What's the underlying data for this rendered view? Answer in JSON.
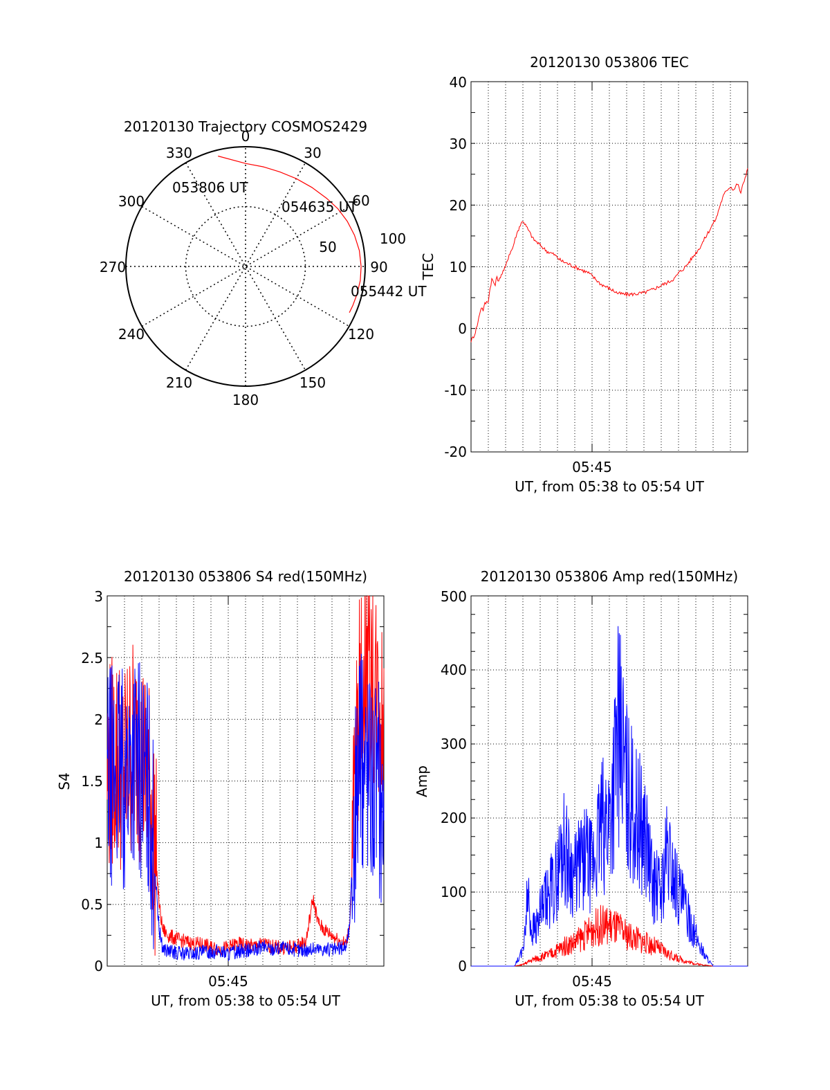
{
  "chart_data": [
    {
      "type": "polar",
      "title": "20120130 Trajectory COSMOS2429",
      "angle_labels": [
        "0",
        "30",
        "60",
        "90",
        "120",
        "150",
        "180",
        "210",
        "240",
        "270",
        "300",
        "330"
      ],
      "radial_labels": [
        "50",
        "100"
      ],
      "start_label": "053806 UT",
      "mid_label": "054635 UT",
      "end_label": "055442 UT",
      "line_color": "#ff0000",
      "track": {
        "azimuth": [
          -14,
          0,
          10,
          20,
          30,
          40,
          50,
          58,
          66,
          74,
          82,
          90,
          97,
          104,
          110,
          114
        ],
        "radius": [
          95,
          86,
          84.5,
          84,
          84.7,
          86.2,
          88.5,
          91,
          93,
          94.7,
          96,
          96.6,
          96.6,
          96,
          95.4,
          95
        ]
      }
    },
    {
      "type": "line",
      "title": "20120130 053806 TEC",
      "xlabel": "UT, from 05:38 to 05:54 UT",
      "ylabel": "TEC",
      "x_tick_label": "05:45",
      "xlim": [
        0,
        16
      ],
      "ylim": [
        -20,
        40
      ],
      "y_ticks": [
        "-20",
        "-10",
        "0",
        "10",
        "20",
        "30",
        "40"
      ],
      "grid": true,
      "series": [
        {
          "color": "#ff0000",
          "x": [
            0,
            0.1,
            0.2,
            0.3,
            0.4,
            0.5,
            0.6,
            0.7,
            0.8,
            1.0,
            1.1,
            1.2,
            1.4,
            1.5,
            1.6,
            1.7,
            1.8,
            2.0,
            2.2,
            2.4,
            2.6,
            2.8,
            3.0,
            3.3,
            3.6,
            4.0,
            4.4,
            4.8,
            5.2,
            5.6,
            6.0,
            6.4,
            6.8,
            7.0,
            7.2,
            7.5,
            8.0,
            8.5,
            9.0,
            9.5,
            10.0,
            10.5,
            11.0,
            11.4,
            11.8,
            12.0,
            12.4,
            12.8,
            13.2,
            13.6,
            14.0,
            14.2,
            14.4,
            14.6,
            14.8,
            15.0,
            15.2,
            15.4,
            15.6,
            15.8,
            16.0
          ],
          "y": [
            -2,
            -1.5,
            -1,
            0,
            1,
            2.5,
            3.5,
            3,
            4,
            4.5,
            6.5,
            8,
            7,
            8.5,
            7.5,
            8.5,
            9,
            10,
            12,
            13,
            15,
            16.5,
            17.5,
            16,
            14.5,
            13.5,
            12.5,
            12,
            11,
            10.5,
            10,
            9.5,
            9,
            8.5,
            8,
            7.2,
            6.5,
            5.7,
            5.5,
            5.6,
            5.8,
            6.3,
            7,
            7.5,
            8.2,
            9,
            10,
            11.5,
            13,
            15,
            17,
            18,
            20,
            21.5,
            22.5,
            23,
            22.5,
            23.5,
            22,
            24,
            26
          ]
        }
      ]
    },
    {
      "type": "line",
      "title": "20120130 053806 S4 red(150MHz)",
      "xlabel": "UT, from 05:38 to 05:54 UT",
      "ylabel": "S4",
      "x_tick_label": "05:45",
      "xlim": [
        0,
        16
      ],
      "ylim": [
        0,
        3
      ],
      "y_ticks": [
        "0",
        "0.5",
        "1",
        "1.5",
        "2",
        "2.5",
        "3"
      ],
      "grid": true,
      "series": [
        {
          "color": "#ff0000",
          "x": [
            0,
            0.5,
            1.0,
            1.5,
            2.0,
            2.5,
            2.8,
            3.0,
            3.2,
            3.5,
            4.0,
            4.5,
            5.0,
            5.5,
            6.0,
            6.5,
            7.0,
            7.5,
            8.0,
            8.5,
            9.0,
            9.5,
            10.0,
            10.5,
            11.0,
            11.5,
            11.9,
            12.2,
            12.5,
            13.0,
            13.5,
            13.8,
            14.0,
            14.2,
            14.5,
            15.0,
            15.5,
            16.0
          ],
          "y": [
            1.6,
            1.7,
            1.6,
            1.8,
            1.7,
            1.4,
            0.9,
            0.5,
            0.3,
            0.25,
            0.22,
            0.2,
            0.18,
            0.18,
            0.15,
            0.14,
            0.15,
            0.18,
            0.17,
            0.16,
            0.18,
            0.16,
            0.15,
            0.15,
            0.16,
            0.2,
            0.55,
            0.35,
            0.3,
            0.25,
            0.2,
            0.18,
            0.3,
            0.9,
            2.0,
            2.5,
            2.2,
            2.0
          ]
        },
        {
          "color": "#0000ff",
          "x": [
            0,
            0.5,
            1.0,
            1.5,
            2.0,
            2.5,
            2.8,
            3.0,
            3.2,
            3.5,
            4.0,
            4.5,
            5.0,
            5.5,
            6.0,
            6.5,
            7.0,
            7.5,
            8.0,
            8.5,
            9.0,
            9.5,
            10.0,
            10.5,
            11.0,
            11.5,
            12.0,
            12.5,
            13.0,
            13.5,
            13.8,
            14.0,
            14.2,
            14.5,
            15.0,
            15.5,
            16.0
          ],
          "y": [
            1.5,
            1.6,
            1.5,
            1.7,
            1.6,
            1.3,
            0.7,
            0.3,
            0.15,
            0.12,
            0.11,
            0.1,
            0.1,
            0.11,
            0.12,
            0.12,
            0.1,
            0.12,
            0.13,
            0.12,
            0.16,
            0.14,
            0.15,
            0.14,
            0.13,
            0.13,
            0.14,
            0.14,
            0.13,
            0.14,
            0.16,
            0.3,
            0.9,
            1.6,
            1.7,
            1.5,
            1.3
          ]
        }
      ]
    },
    {
      "type": "line",
      "title": "20120130 053806 Amp red(150MHz)",
      "xlabel": "UT, from 05:38 to 05:54 UT",
      "ylabel": "Amp",
      "x_tick_label": "05:45",
      "xlim": [
        0,
        16
      ],
      "ylim": [
        0,
        500
      ],
      "y_ticks": [
        "0",
        "100",
        "200",
        "300",
        "400",
        "500"
      ],
      "grid": true,
      "series": [
        {
          "color": "#ff0000",
          "x": [
            0,
            2.5,
            3.0,
            3.5,
            4.0,
            4.5,
            5.0,
            5.5,
            6.0,
            6.5,
            7.0,
            7.5,
            8.0,
            8.5,
            9.0,
            9.5,
            10.0,
            10.5,
            11.0,
            11.5,
            12.0,
            12.5,
            13.0,
            14.0,
            16.0
          ],
          "y": [
            0,
            0,
            2,
            8,
            12,
            15,
            22,
            28,
            32,
            40,
            50,
            55,
            55,
            50,
            42,
            38,
            32,
            28,
            22,
            15,
            10,
            6,
            3,
            0,
            0
          ]
        },
        {
          "color": "#0000ff",
          "x": [
            0,
            2.5,
            3.0,
            3.3,
            3.5,
            3.8,
            4.0,
            4.5,
            5.0,
            5.3,
            5.6,
            6.0,
            6.5,
            7.0,
            7.5,
            8.0,
            8.3,
            8.5,
            8.8,
            9.0,
            9.5,
            10.0,
            10.5,
            11.0,
            11.3,
            11.5,
            12.0,
            12.5,
            13.0,
            13.5,
            14.0,
            16.0
          ],
          "y": [
            0,
            0,
            20,
            100,
            50,
            55,
            70,
            95,
            120,
            170,
            140,
            120,
            150,
            130,
            185,
            200,
            260,
            320,
            280,
            240,
            200,
            190,
            110,
            100,
            150,
            140,
            100,
            70,
            40,
            15,
            0,
            0
          ]
        }
      ]
    }
  ]
}
